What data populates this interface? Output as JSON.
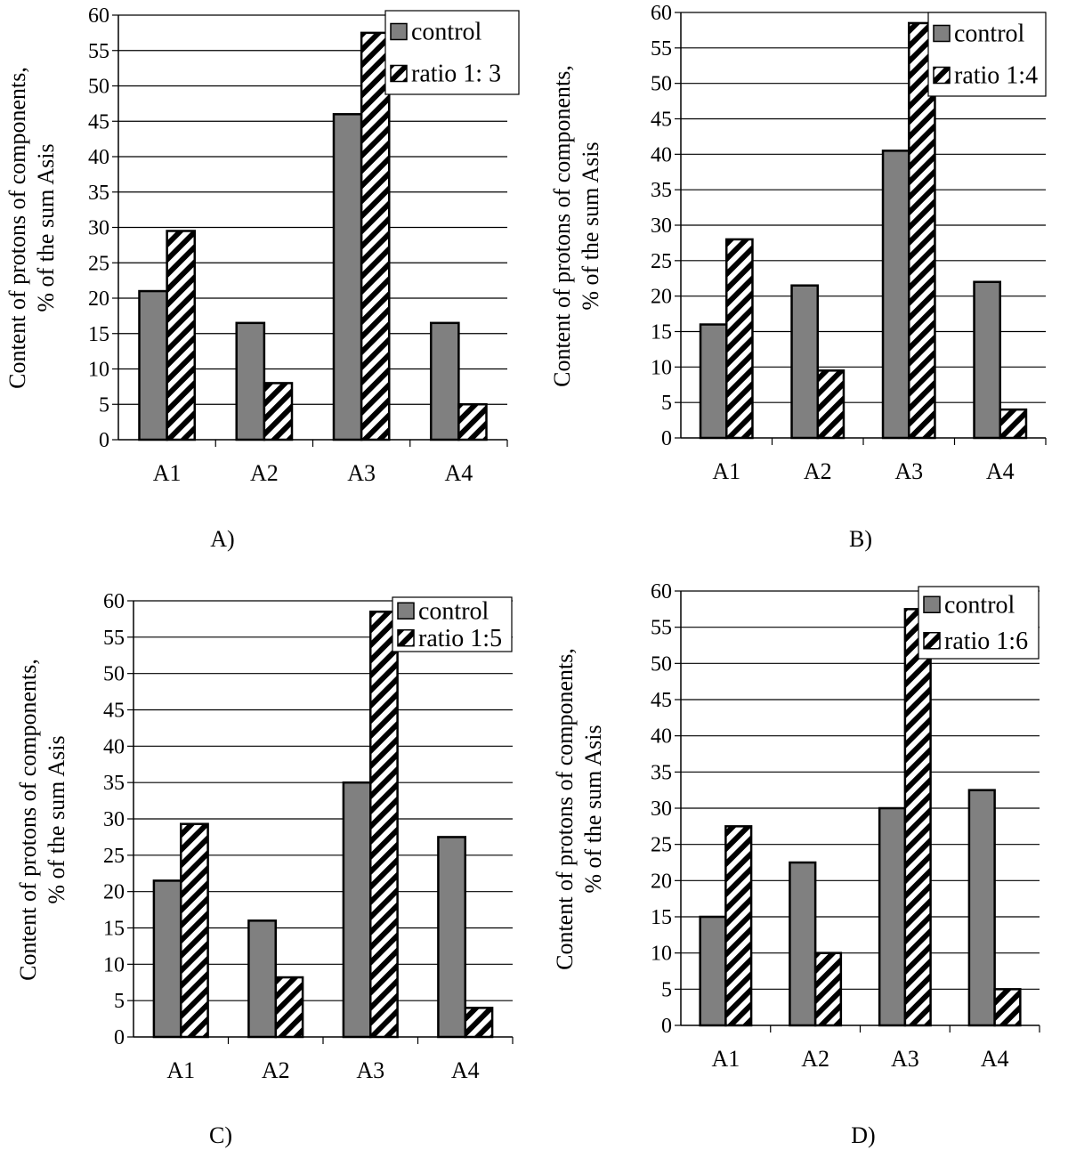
{
  "figure": {
    "series_styles": {
      "control": {
        "fill": "#808080",
        "stroke": "#000000"
      },
      "ratio": {
        "fill": "hatched",
        "stripe": "#000000",
        "background": "#ffffff"
      }
    }
  },
  "chart_data": [
    {
      "type": "bar",
      "panel_label": "A)",
      "ylabel": "Content of protons of components,\n% of the sum Asis",
      "xlabel": "",
      "categories": [
        "A1",
        "A2",
        "A3",
        "A4"
      ],
      "ylim": [
        0,
        60
      ],
      "yticks": [
        0,
        5,
        10,
        15,
        20,
        25,
        30,
        35,
        40,
        45,
        50,
        55,
        60
      ],
      "grid": true,
      "legend_position": "top-right",
      "series": [
        {
          "name": "control",
          "values": [
            21,
            16.5,
            46,
            16.5
          ]
        },
        {
          "name": "ratio 1: 3",
          "values": [
            29.5,
            8,
            57.5,
            5
          ]
        }
      ]
    },
    {
      "type": "bar",
      "panel_label": "B)",
      "ylabel": "Content of protons of components,\n% of the sum Asis",
      "xlabel": "",
      "categories": [
        "A1",
        "A2",
        "A3",
        "A4"
      ],
      "ylim": [
        0,
        60
      ],
      "yticks": [
        0,
        5,
        10,
        15,
        20,
        25,
        30,
        35,
        40,
        45,
        50,
        55,
        60
      ],
      "grid": true,
      "legend_position": "top-right",
      "series": [
        {
          "name": "control",
          "values": [
            16,
            21.5,
            40.5,
            22
          ]
        },
        {
          "name": "ratio 1:4",
          "values": [
            28,
            9.5,
            58.5,
            4
          ]
        }
      ]
    },
    {
      "type": "bar",
      "panel_label": "C)",
      "ylabel": "Content of protons of components,\n% of the sum Asis",
      "xlabel": "",
      "categories": [
        "A1",
        "A2",
        "A3",
        "A4"
      ],
      "ylim": [
        0,
        60
      ],
      "yticks": [
        0,
        5,
        10,
        15,
        20,
        25,
        30,
        35,
        40,
        45,
        50,
        55,
        60
      ],
      "grid": true,
      "legend_position": "top-right",
      "series": [
        {
          "name": "control",
          "values": [
            21.5,
            16,
            35,
            27.5
          ]
        },
        {
          "name": "ratio 1:5",
          "values": [
            29.3,
            8.2,
            58.5,
            4
          ]
        }
      ]
    },
    {
      "type": "bar",
      "panel_label": "D)",
      "ylabel": "Content of protons of components,\n% of the sum Asis",
      "xlabel": "",
      "categories": [
        "A1",
        "A2",
        "A3",
        "A4"
      ],
      "ylim": [
        0,
        60
      ],
      "yticks": [
        0,
        5,
        10,
        15,
        20,
        25,
        30,
        35,
        40,
        45,
        50,
        55,
        60
      ],
      "grid": true,
      "legend_position": "top-right",
      "series": [
        {
          "name": "control",
          "values": [
            15,
            22.5,
            30,
            32.5
          ]
        },
        {
          "name": "ratio 1:6",
          "values": [
            27.5,
            10,
            57.5,
            5
          ]
        }
      ]
    }
  ]
}
